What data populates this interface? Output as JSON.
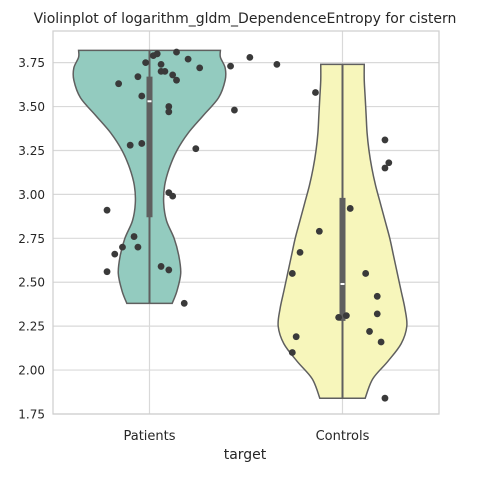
{
  "chart_data": {
    "type": "violin",
    "title": "Violinplot of logarithm_gldm_DependenceEntropy for cistern",
    "xlabel": "target",
    "ylabel": "",
    "categories": [
      "Patients",
      "Controls"
    ],
    "ylim": [
      1.75,
      3.93
    ],
    "yticks": [
      "1.75",
      "2.00",
      "2.25",
      "2.50",
      "2.75",
      "3.00",
      "3.25",
      "3.50",
      "3.75"
    ],
    "grid": true,
    "series": [
      {
        "category": "Patients",
        "color": "#93cbbf",
        "range": [
          2.38,
          3.82
        ],
        "box": {
          "q1": 2.87,
          "median": 3.53,
          "q3": 3.67
        },
        "density": [
          [
            2.38,
            0.24
          ],
          [
            2.45,
            0.29
          ],
          [
            2.55,
            0.33
          ],
          [
            2.65,
            0.31
          ],
          [
            2.75,
            0.26
          ],
          [
            2.85,
            0.18
          ],
          [
            2.95,
            0.15
          ],
          [
            3.05,
            0.16
          ],
          [
            3.15,
            0.21
          ],
          [
            3.25,
            0.29
          ],
          [
            3.35,
            0.41
          ],
          [
            3.45,
            0.57
          ],
          [
            3.55,
            0.73
          ],
          [
            3.65,
            0.8
          ],
          [
            3.72,
            0.8
          ],
          [
            3.78,
            0.75
          ],
          [
            3.82,
            0.75
          ]
        ],
        "points": [
          [
            0.26,
            3.79
          ],
          [
            0.24,
            3.75
          ],
          [
            0.28,
            3.74
          ],
          [
            0.27,
            3.8
          ],
          [
            0.28,
            3.7
          ],
          [
            0.29,
            3.7
          ],
          [
            0.31,
            3.68
          ],
          [
            0.32,
            3.81
          ],
          [
            0.35,
            3.77
          ],
          [
            0.38,
            3.72
          ],
          [
            0.46,
            3.73
          ],
          [
            0.51,
            3.78
          ],
          [
            0.17,
            3.63
          ],
          [
            0.22,
            3.67
          ],
          [
            0.3,
            3.5
          ],
          [
            0.3,
            3.47
          ],
          [
            0.32,
            3.65
          ],
          [
            0.23,
            3.56
          ],
          [
            0.47,
            3.48
          ],
          [
            0.2,
            3.28
          ],
          [
            0.23,
            3.29
          ],
          [
            0.37,
            3.26
          ],
          [
            0.3,
            3.01
          ],
          [
            0.31,
            2.99
          ],
          [
            0.14,
            2.91
          ],
          [
            0.21,
            2.76
          ],
          [
            0.22,
            2.7
          ],
          [
            0.18,
            2.7
          ],
          [
            0.16,
            2.66
          ],
          [
            0.14,
            2.56
          ],
          [
            0.28,
            2.59
          ],
          [
            0.3,
            2.57
          ],
          [
            0.34,
            2.38
          ]
        ]
      },
      {
        "category": "Controls",
        "color": "#f7f6bb",
        "range": [
          1.84,
          3.74
        ],
        "box": {
          "q1": 2.28,
          "median": 2.49,
          "q3": 2.98
        },
        "density": [
          [
            1.84,
            0.24
          ],
          [
            1.95,
            0.32
          ],
          [
            2.05,
            0.48
          ],
          [
            2.15,
            0.62
          ],
          [
            2.25,
            0.68
          ],
          [
            2.35,
            0.66
          ],
          [
            2.45,
            0.62
          ],
          [
            2.55,
            0.58
          ],
          [
            2.65,
            0.54
          ],
          [
            2.75,
            0.5
          ],
          [
            2.85,
            0.45
          ],
          [
            2.95,
            0.4
          ],
          [
            3.05,
            0.35
          ],
          [
            3.15,
            0.31
          ],
          [
            3.25,
            0.28
          ],
          [
            3.35,
            0.26
          ],
          [
            3.45,
            0.25
          ],
          [
            3.55,
            0.24
          ],
          [
            3.65,
            0.23
          ],
          [
            3.74,
            0.23
          ]
        ],
        "points": [
          [
            0.58,
            3.74
          ],
          [
            0.68,
            3.58
          ],
          [
            0.86,
            3.31
          ],
          [
            0.87,
            3.18
          ],
          [
            0.86,
            3.15
          ],
          [
            0.77,
            2.92
          ],
          [
            0.69,
            2.79
          ],
          [
            0.64,
            2.67
          ],
          [
            0.62,
            2.55
          ],
          [
            0.81,
            2.55
          ],
          [
            0.84,
            2.42
          ],
          [
            0.76,
            2.31
          ],
          [
            0.74,
            2.3
          ],
          [
            0.84,
            2.32
          ],
          [
            0.63,
            2.19
          ],
          [
            0.82,
            2.22
          ],
          [
            0.62,
            2.1
          ],
          [
            0.85,
            2.16
          ],
          [
            0.86,
            1.84
          ]
        ]
      }
    ]
  }
}
